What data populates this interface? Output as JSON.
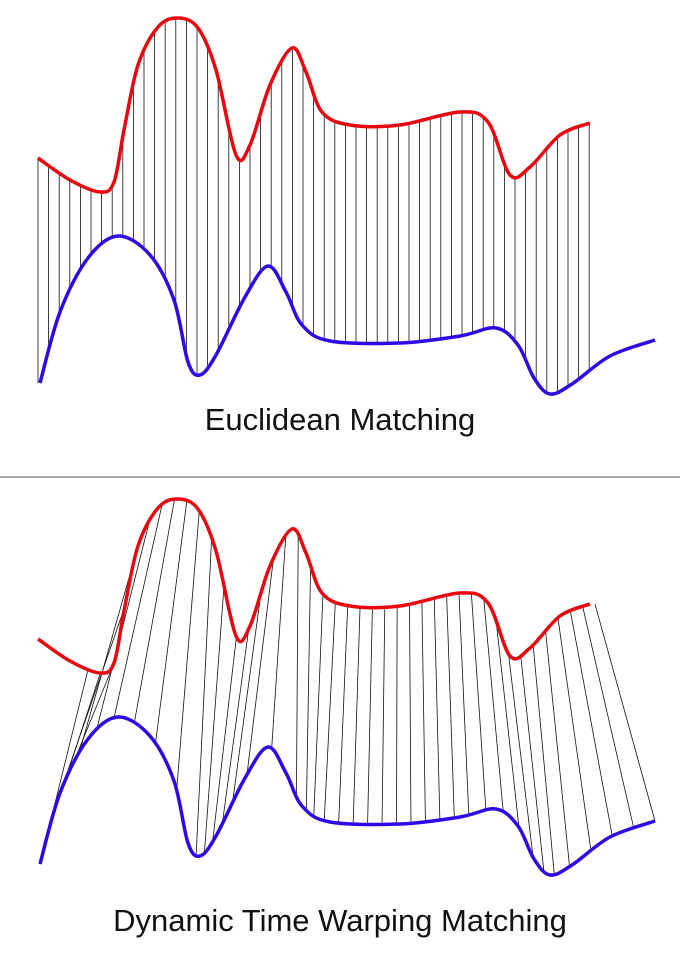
{
  "panels": [
    {
      "title": "Euclidean Matching"
    },
    {
      "title": "Dynamic Time Warping Matching"
    }
  ],
  "colors": {
    "series_a": "#e8070f",
    "series_b": "#2b0ae6",
    "match_lines": "#111111",
    "divider": "#555555"
  }
}
